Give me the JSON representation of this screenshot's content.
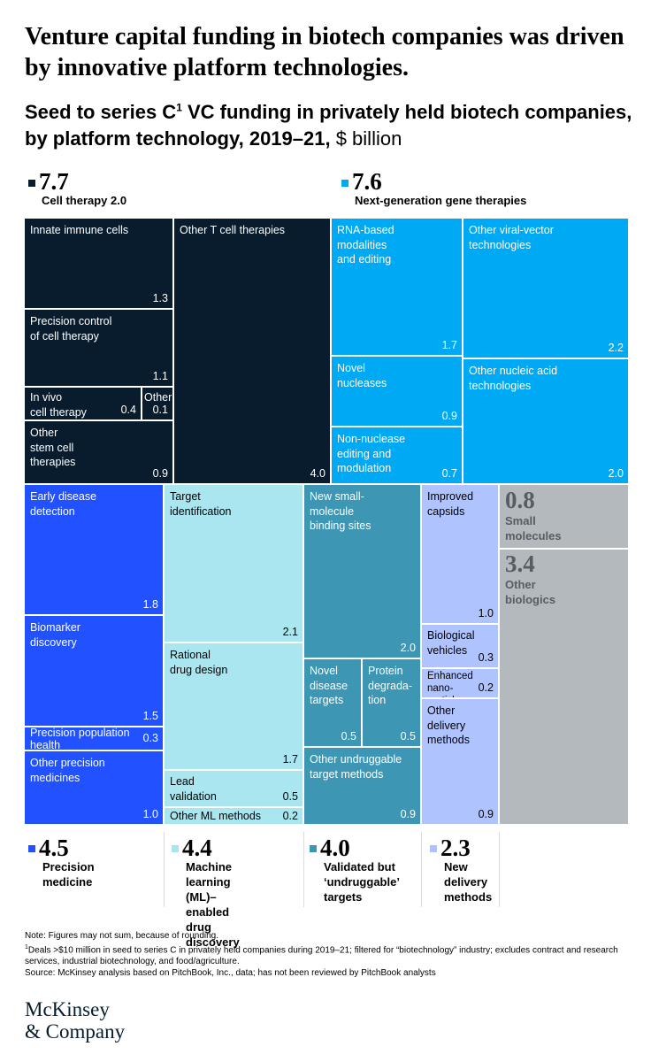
{
  "title": "Venture capital funding in biotech companies was driven by innovative platform technologies.",
  "subtitle": {
    "main": "Seed to series C",
    "sup": "1",
    "rest": " VC funding in privately held biotech companies, by platform technology, 2019–21,",
    "unit": " $ billion"
  },
  "colors": {
    "cell_therapy": "#081c2e",
    "gene_therapy": "#00a9f4",
    "precision_medicine": "#2251ff",
    "ml_drug_discovery": "#aae6f0",
    "undruggable": "#3c96b4",
    "delivery": "#afc3ff",
    "other": "#b4b9bd"
  },
  "chart_data": {
    "type": "treemap",
    "unit": "$ billion",
    "groups": [
      {
        "key": "cell_therapy",
        "name": "Cell therapy 2.0",
        "total": "7.7",
        "items": [
          {
            "label": "Innate immune cells",
            "value": "1.3"
          },
          {
            "label": "Precision control\nof cell therapy",
            "value": "1.1"
          },
          {
            "label": "In vivo\ncell therapy",
            "value": "0.4"
          },
          {
            "label": "Other",
            "value": "0.1"
          },
          {
            "label": "Other\nstem cell\ntherapies",
            "value": "0.9"
          },
          {
            "label": "Other T cell therapies",
            "value": "4.0"
          }
        ]
      },
      {
        "key": "gene_therapy",
        "name": "Next-generation gene therapies",
        "total": "7.6",
        "items": [
          {
            "label": "RNA-based\nmodalities\nand editing",
            "value": "1.7"
          },
          {
            "label": "Novel\nnucleases",
            "value": "0.9"
          },
          {
            "label": "Non-nuclease\nediting and\nmodulation",
            "value": "0.7"
          },
          {
            "label": "Other viral-vector\ntechnologies",
            "value": "2.2"
          },
          {
            "label": "Other nucleic acid\ntechnologies",
            "value": "2.0"
          }
        ]
      },
      {
        "key": "precision_medicine",
        "name": "Precision\nmedicine",
        "total": "4.5",
        "items": [
          {
            "label": "Early disease\ndetection",
            "value": "1.8"
          },
          {
            "label": "Biomarker\ndiscovery",
            "value": "1.5"
          },
          {
            "label": "Precision population\nhealth",
            "value": "0.3"
          },
          {
            "label": "Other precision\nmedicines",
            "value": "1.0"
          }
        ]
      },
      {
        "key": "ml_drug_discovery",
        "name": "Machine learning\n(ML)–enabled\ndrug discovery",
        "total": "4.4",
        "items": [
          {
            "label": "Target\nidentification",
            "value": "2.1"
          },
          {
            "label": "Rational\ndrug design",
            "value": "1.7"
          },
          {
            "label": "Lead\nvalidation",
            "value": "0.5"
          },
          {
            "label": "Other ML methods",
            "value": "0.2"
          }
        ]
      },
      {
        "key": "undruggable",
        "name": "Validated but\n‘undruggable’\ntargets",
        "total": "4.0",
        "items": [
          {
            "label": "New small-\nmolecule\nbinding sites",
            "value": "2.0"
          },
          {
            "label": "Novel\ndisease\ntargets",
            "value": "0.5"
          },
          {
            "label": "Protein\ndegrada-\ntion",
            "value": "0.5"
          },
          {
            "label": "Other undruggable\ntarget methods",
            "value": "0.9"
          }
        ]
      },
      {
        "key": "delivery",
        "name": "New\ndelivery\nmethods",
        "total": "2.3",
        "items": [
          {
            "label": "Improved\ncapsids",
            "value": "1.0"
          },
          {
            "label": "Biological\nvehicles",
            "value": "0.3"
          },
          {
            "label": "Enhanced nano-\nparticles",
            "value": "0.2"
          },
          {
            "label": "Other\ndelivery\nmethods",
            "value": "0.9"
          }
        ]
      },
      {
        "key": "small_molecules",
        "name": "Small\nmolecules",
        "total": "0.8",
        "items": []
      },
      {
        "key": "other_biologics",
        "name": "Other\nbiologics",
        "total": "3.4",
        "items": []
      }
    ]
  },
  "notes": {
    "note": "Note: Figures may not sum, because of rounding.",
    "footnote_mark": "1",
    "footnote": "Deals >$10 million in seed to series C in privately held companies during 2019–21; filtered for “biotechnology” industry; excludes contract and research services, industrial biotechnology, and food/agriculture.",
    "source": "Source: McKinsey analysis based on PitchBook, Inc., data; has not been reviewed by PitchBook analysts"
  },
  "logo": {
    "line1": "McKinsey",
    "line2": "& Company"
  }
}
